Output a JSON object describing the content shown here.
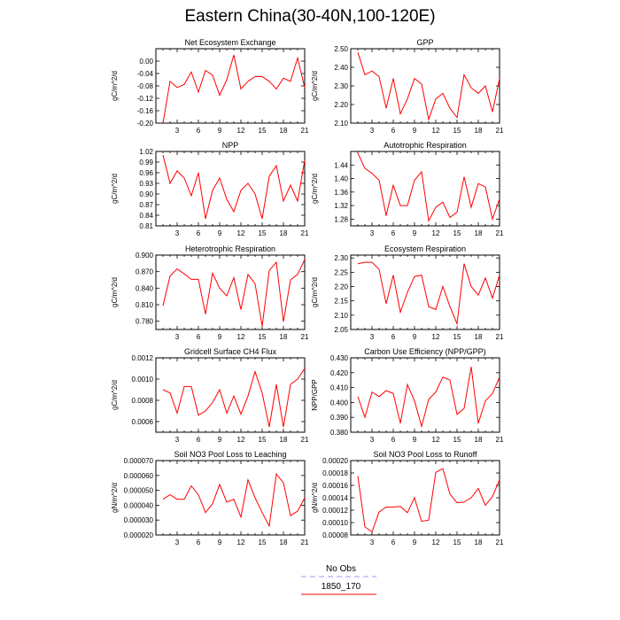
{
  "title": "Eastern China(30-40N,100-120E)",
  "legend": {
    "items": [
      {
        "label": "No Obs",
        "color": "#9999ff",
        "dashed": true
      },
      {
        "label": "1850_170",
        "color": "#ff0000",
        "dashed": false
      }
    ]
  },
  "colors": {
    "series": "#ff0000",
    "axis": "#000000",
    "obs": "#9999ff"
  },
  "chart_data": [
    {
      "type": "line",
      "title": "Net Ecosystem Exchange",
      "ylabel": "gC/m^2/d",
      "xlim": [
        0,
        21
      ],
      "ylim": [
        -0.2,
        0.04
      ],
      "xticks": [
        3,
        6,
        9,
        12,
        15,
        18,
        21
      ],
      "yticks": [
        -0.2,
        -0.16,
        -0.12,
        -0.08,
        -0.04,
        0.0
      ],
      "ytick_labels": [
        "-0.20",
        "-0.16",
        "-0.12",
        "-0.08",
        "-0.04",
        "0.00"
      ],
      "series": [
        {
          "x": [
            1,
            2,
            3,
            4,
            5,
            6,
            7,
            8,
            9,
            10,
            11,
            12,
            13,
            14,
            15,
            16,
            17,
            18,
            19,
            20,
            21
          ],
          "y": [
            -0.2,
            -0.065,
            -0.085,
            -0.075,
            -0.035,
            -0.1,
            -0.03,
            -0.045,
            -0.11,
            -0.06,
            0.02,
            -0.09,
            -0.065,
            -0.05,
            -0.05,
            -0.065,
            -0.09,
            -0.055,
            -0.065,
            0.01,
            -0.085
          ]
        }
      ]
    },
    {
      "type": "line",
      "title": "GPP",
      "ylabel": "gC/m^2/d",
      "xlim": [
        0,
        21
      ],
      "ylim": [
        2.1,
        2.5
      ],
      "xticks": [
        3,
        6,
        9,
        12,
        15,
        18,
        21
      ],
      "yticks": [
        2.1,
        2.2,
        2.3,
        2.4,
        2.5
      ],
      "ytick_labels": [
        "2.10",
        "2.20",
        "2.30",
        "2.40",
        "2.50"
      ],
      "series": [
        {
          "x": [
            1,
            2,
            3,
            4,
            5,
            6,
            7,
            8,
            9,
            10,
            11,
            12,
            13,
            14,
            15,
            16,
            17,
            18,
            19,
            20,
            21
          ],
          "y": [
            2.48,
            2.36,
            2.38,
            2.35,
            2.18,
            2.34,
            2.15,
            2.23,
            2.34,
            2.31,
            2.12,
            2.23,
            2.26,
            2.18,
            2.13,
            2.36,
            2.29,
            2.26,
            2.3,
            2.16,
            2.34
          ]
        }
      ]
    },
    {
      "type": "line",
      "title": "NPP",
      "ylabel": "gC/m^2/d",
      "xlim": [
        0,
        21
      ],
      "ylim": [
        0.81,
        1.02
      ],
      "xticks": [
        3,
        6,
        9,
        12,
        15,
        18,
        21
      ],
      "yticks": [
        0.81,
        0.84,
        0.87,
        0.9,
        0.93,
        0.96,
        0.99,
        1.02
      ],
      "ytick_labels": [
        "0.81",
        "0.84",
        "0.87",
        "0.90",
        "0.93",
        "0.96",
        "0.99",
        "1.02"
      ],
      "series": [
        {
          "x": [
            1,
            2,
            3,
            4,
            5,
            6,
            7,
            8,
            9,
            10,
            11,
            12,
            13,
            14,
            15,
            16,
            17,
            18,
            19,
            20,
            21
          ],
          "y": [
            1.01,
            0.93,
            0.965,
            0.945,
            0.895,
            0.96,
            0.83,
            0.91,
            0.945,
            0.885,
            0.85,
            0.91,
            0.93,
            0.9,
            0.83,
            0.95,
            0.98,
            0.88,
            0.925,
            0.88,
            0.995
          ]
        }
      ]
    },
    {
      "type": "line",
      "title": "Autotrophic Respiration",
      "ylabel": "gC/m^2/d",
      "xlim": [
        0,
        21
      ],
      "ylim": [
        1.26,
        1.48
      ],
      "xticks": [
        3,
        6,
        9,
        12,
        15,
        18,
        21
      ],
      "yticks": [
        1.28,
        1.32,
        1.36,
        1.4,
        1.44
      ],
      "ytick_labels": [
        "1.28",
        "1.32",
        "1.36",
        "1.40",
        "1.44"
      ],
      "series": [
        {
          "x": [
            1,
            2,
            3,
            4,
            5,
            6,
            7,
            8,
            9,
            10,
            11,
            12,
            13,
            14,
            15,
            16,
            17,
            18,
            19,
            20,
            21
          ],
          "y": [
            1.475,
            1.43,
            1.415,
            1.395,
            1.29,
            1.38,
            1.32,
            1.32,
            1.395,
            1.42,
            1.275,
            1.315,
            1.33,
            1.285,
            1.3,
            1.405,
            1.315,
            1.385,
            1.375,
            1.28,
            1.34
          ]
        }
      ]
    },
    {
      "type": "line",
      "title": "Heterotrophic Respiration",
      "ylabel": "gC/m^2/d",
      "xlim": [
        0,
        21
      ],
      "ylim": [
        0.765,
        0.9
      ],
      "xticks": [
        3,
        6,
        9,
        12,
        15,
        18,
        21
      ],
      "yticks": [
        0.78,
        0.81,
        0.84,
        0.87,
        0.9
      ],
      "ytick_labels": [
        "0.780",
        "0.810",
        "0.840",
        "0.870",
        "0.900"
      ],
      "series": [
        {
          "x": [
            1,
            2,
            3,
            4,
            5,
            6,
            7,
            8,
            9,
            10,
            11,
            12,
            13,
            14,
            15,
            16,
            17,
            18,
            19,
            20,
            21
          ],
          "y": [
            0.808,
            0.862,
            0.875,
            0.866,
            0.856,
            0.856,
            0.793,
            0.867,
            0.84,
            0.826,
            0.859,
            0.801,
            0.865,
            0.848,
            0.771,
            0.872,
            0.887,
            0.779,
            0.855,
            0.865,
            0.892
          ]
        }
      ]
    },
    {
      "type": "line",
      "title": "Ecosystem Respiration",
      "ylabel": "gC/m^2/d",
      "xlim": [
        0,
        21
      ],
      "ylim": [
        2.05,
        2.31
      ],
      "xticks": [
        3,
        6,
        9,
        12,
        15,
        18,
        21
      ],
      "yticks": [
        2.05,
        2.1,
        2.15,
        2.2,
        2.25,
        2.3
      ],
      "ytick_labels": [
        "2.05",
        "2.10",
        "2.15",
        "2.20",
        "2.25",
        "2.30"
      ],
      "series": [
        {
          "x": [
            1,
            2,
            3,
            4,
            5,
            6,
            7,
            8,
            9,
            10,
            11,
            12,
            13,
            14,
            15,
            16,
            17,
            18,
            19,
            20,
            21
          ],
          "y": [
            2.28,
            2.285,
            2.285,
            2.26,
            2.14,
            2.24,
            2.11,
            2.18,
            2.235,
            2.24,
            2.13,
            2.12,
            2.2,
            2.13,
            2.07,
            2.28,
            2.2,
            2.17,
            2.23,
            2.16,
            2.24
          ]
        }
      ]
    },
    {
      "type": "line",
      "title": "Gridcell Surface CH4 Flux",
      "ylabel": "gC/m^2/d",
      "xlim": [
        0,
        21
      ],
      "ylim": [
        0.0005,
        0.0012
      ],
      "xticks": [
        3,
        6,
        9,
        12,
        15,
        18,
        21
      ],
      "yticks": [
        0.0006,
        0.0008,
        0.001,
        0.0012
      ],
      "ytick_labels": [
        "0.0006",
        "0.0008",
        "0.0010",
        "0.0012"
      ],
      "series": [
        {
          "x": [
            1,
            2,
            3,
            4,
            5,
            6,
            7,
            8,
            9,
            10,
            11,
            12,
            13,
            14,
            15,
            16,
            17,
            18,
            19,
            20,
            21
          ],
          "y": [
            0.0009,
            0.00087,
            0.00068,
            0.00093,
            0.00093,
            0.00066,
            0.0007,
            0.00078,
            0.0009,
            0.00068,
            0.00084,
            0.00067,
            0.00084,
            0.00107,
            0.00087,
            0.00055,
            0.00095,
            0.00055,
            0.00095,
            0.001,
            0.0011
          ]
        }
      ]
    },
    {
      "type": "line",
      "title": "Carbon Use Efficiency (NPP/GPP)",
      "ylabel": "NPP/GPP",
      "xlim": [
        0,
        21
      ],
      "ylim": [
        0.38,
        0.43
      ],
      "xticks": [
        3,
        6,
        9,
        12,
        15,
        18,
        21
      ],
      "yticks": [
        0.38,
        0.39,
        0.4,
        0.41,
        0.42,
        0.43
      ],
      "ytick_labels": [
        "0.380",
        "0.390",
        "0.400",
        "0.410",
        "0.420",
        "0.430"
      ],
      "series": [
        {
          "x": [
            1,
            2,
            3,
            4,
            5,
            6,
            7,
            8,
            9,
            10,
            11,
            12,
            13,
            14,
            15,
            16,
            17,
            18,
            19,
            20,
            21
          ],
          "y": [
            0.404,
            0.39,
            0.407,
            0.404,
            0.408,
            0.406,
            0.386,
            0.412,
            0.401,
            0.384,
            0.402,
            0.407,
            0.417,
            0.415,
            0.392,
            0.396,
            0.424,
            0.386,
            0.401,
            0.406,
            0.417
          ]
        }
      ]
    },
    {
      "type": "line",
      "title": "Soil NO3 Pool Loss to Leaching",
      "ylabel": "gN/m^2/d",
      "xlim": [
        0,
        21
      ],
      "ylim": [
        2e-05,
        7e-05
      ],
      "xticks": [
        3,
        6,
        9,
        12,
        15,
        18,
        21
      ],
      "yticks": [
        2e-05,
        3e-05,
        4e-05,
        5e-05,
        6e-05,
        7e-05
      ],
      "ytick_labels": [
        "0.000020",
        "0.000030",
        "0.000040",
        "0.000050",
        "0.000060",
        "0.000070"
      ],
      "series": [
        {
          "x": [
            1,
            2,
            3,
            4,
            5,
            6,
            7,
            8,
            9,
            10,
            11,
            12,
            13,
            14,
            15,
            16,
            17,
            18,
            19,
            20,
            21
          ],
          "y": [
            4.4e-05,
            4.7e-05,
            4.4e-05,
            4.4e-05,
            5.3e-05,
            4.7e-05,
            3.5e-05,
            4.1e-05,
            5.4e-05,
            4.2e-05,
            4.4e-05,
            3.2e-05,
            5.7e-05,
            4.5e-05,
            3.5e-05,
            2.6e-05,
            6.1e-05,
            5.5e-05,
            3.3e-05,
            3.6e-05,
            4.5e-05
          ]
        }
      ]
    },
    {
      "type": "line",
      "title": "Soil NO3 Pool Loss to Runoff",
      "ylabel": "gN/m^2/d",
      "xlim": [
        0,
        21
      ],
      "ylim": [
        8e-05,
        0.0002
      ],
      "xticks": [
        3,
        6,
        9,
        12,
        15,
        18,
        21
      ],
      "yticks": [
        8e-05,
        0.0001,
        0.00012,
        0.00014,
        0.00016,
        0.00018,
        0.0002
      ],
      "ytick_labels": [
        "0.00008",
        "0.00010",
        "0.00012",
        "0.00014",
        "0.00016",
        "0.00018",
        "0.00020"
      ],
      "series": [
        {
          "x": [
            1,
            2,
            3,
            4,
            5,
            6,
            7,
            8,
            9,
            10,
            11,
            12,
            13,
            14,
            15,
            16,
            17,
            18,
            19,
            20,
            21
          ],
          "y": [
            0.000175,
            9.3e-05,
            8.5e-05,
            0.000117,
            0.000125,
            0.000125,
            0.000126,
            0.000116,
            0.00014,
            0.000102,
            0.000104,
            0.000181,
            0.000187,
            0.000146,
            0.000132,
            0.000133,
            0.00014,
            0.000155,
            0.000128,
            0.000142,
            0.000169
          ]
        }
      ]
    }
  ]
}
